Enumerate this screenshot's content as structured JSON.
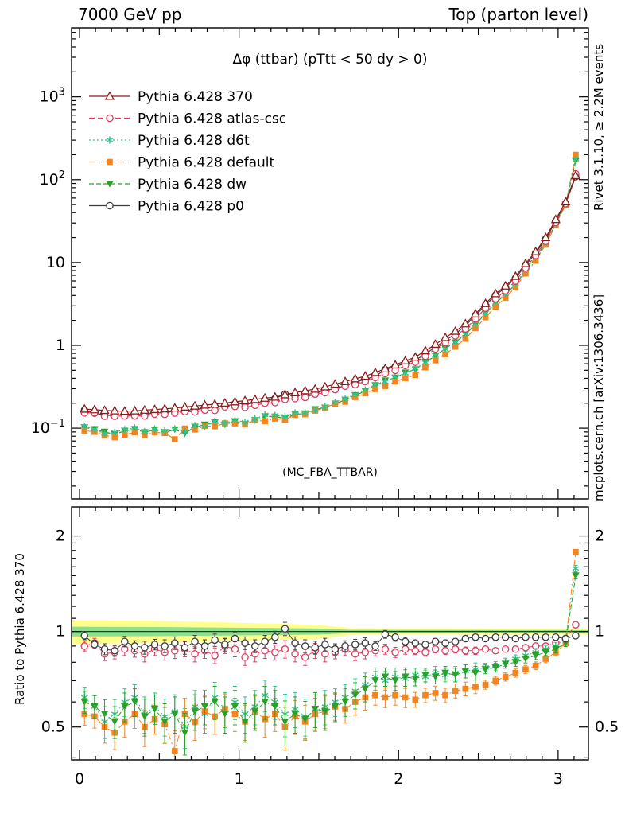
{
  "header": {
    "left": "7000 GeV pp",
    "right": "Top (parton level)"
  },
  "side_notes": {
    "top": "Rivet 3.1.10, ≥ 2.2M events",
    "bottom": "mcplots.cern.ch [arXiv:1306.3436]"
  },
  "watermark": "(MC_FBA_TTBAR)",
  "chart_data": {
    "type": "line",
    "title": "Δφ (ttbar) (pTtt < 50 dy > 0)",
    "xlabel": "",
    "xlim": [
      -0.05,
      3.19
    ],
    "x_label_ticks": [
      0,
      1,
      2,
      3
    ],
    "main_panel": {
      "yscale": "log",
      "ylim": [
        0.014,
        6800
      ],
      "ytick_exponents": [
        -1,
        0,
        1,
        2,
        3
      ]
    },
    "ratio_panel": {
      "yscale": "log",
      "ylim": [
        0.394,
        2.47
      ],
      "yticks": [
        0.5,
        1,
        2
      ],
      "minor_yticks": [
        0.4,
        0.6,
        0.7,
        0.8,
        0.9,
        1.1,
        1.2,
        1.3,
        1.4,
        1.5,
        1.6,
        1.7,
        1.8,
        1.9
      ],
      "ylabel": "Ratio to Pythia 6.428 370"
    },
    "x": [
      0.031,
      0.094,
      0.157,
      0.22,
      0.283,
      0.346,
      0.408,
      0.471,
      0.534,
      0.597,
      0.66,
      0.723,
      0.785,
      0.848,
      0.911,
      0.974,
      1.037,
      1.1,
      1.162,
      1.225,
      1.288,
      1.351,
      1.414,
      1.477,
      1.539,
      1.602,
      1.665,
      1.728,
      1.791,
      1.854,
      1.916,
      1.979,
      2.042,
      2.105,
      2.168,
      2.231,
      2.293,
      2.356,
      2.419,
      2.482,
      2.545,
      2.608,
      2.67,
      2.733,
      2.796,
      2.859,
      2.922,
      2.985,
      3.047,
      3.11
    ],
    "ratio_err": [
      0.04,
      0.04,
      0.05,
      0.05,
      0.05,
      0.05,
      0.06,
      0.05,
      0.06,
      0.06,
      0.06,
      0.06,
      0.06,
      0.06,
      0.06,
      0.06,
      0.06,
      0.06,
      0.06,
      0.06,
      0.07,
      0.06,
      0.06,
      0.06,
      0.06,
      0.05,
      0.05,
      0.05,
      0.05,
      0.04,
      0.04,
      0.04,
      0.04,
      0.03,
      0.03,
      0.03,
      0.03,
      0.03,
      0.03,
      0.03,
      0.02,
      0.02,
      0.02,
      0.02,
      0.02,
      0.02,
      0.02,
      0.02,
      0.02,
      0.03
    ],
    "reference": {
      "key": "370",
      "name": "Pythia 6.428 370",
      "color": "#8b1a1a",
      "marker": "triangle-open",
      "dash": "",
      "values": [
        0.17,
        0.167,
        0.164,
        0.162,
        0.16,
        0.162,
        0.165,
        0.168,
        0.171,
        0.175,
        0.18,
        0.185,
        0.19,
        0.195,
        0.201,
        0.208,
        0.215,
        0.222,
        0.23,
        0.237,
        0.253,
        0.268,
        0.283,
        0.296,
        0.315,
        0.34,
        0.365,
        0.395,
        0.425,
        0.47,
        0.52,
        0.58,
        0.65,
        0.72,
        0.86,
        1.03,
        1.24,
        1.48,
        1.82,
        2.4,
        3.2,
        4.2,
        5.2,
        6.8,
        9.7,
        13.5,
        20.0,
        33.0,
        54.0,
        112
      ]
    },
    "series": [
      {
        "key": "atlas-csc",
        "name": "Pythia 6.428 atlas-csc",
        "color": "#e03a5f",
        "marker": "circle-open",
        "dash": "7,4",
        "err_scale": 0.8,
        "ratio": [
          0.9,
          0.92,
          0.85,
          0.86,
          0.88,
          0.87,
          0.85,
          0.88,
          0.86,
          0.87,
          0.88,
          0.85,
          0.87,
          0.84,
          0.9,
          0.88,
          0.83,
          0.85,
          0.87,
          0.86,
          0.88,
          0.85,
          0.83,
          0.87,
          0.85,
          0.86,
          0.88,
          0.85,
          0.86,
          0.87,
          0.88,
          0.86,
          0.88,
          0.87,
          0.86,
          0.88,
          0.87,
          0.88,
          0.87,
          0.87,
          0.88,
          0.87,
          0.88,
          0.88,
          0.89,
          0.9,
          0.9,
          0.92,
          0.95,
          1.05
        ]
      },
      {
        "key": "d6t",
        "name": "Pythia 6.428 d6t",
        "color": "#33c48d",
        "marker": "asterisk",
        "dash": "2,3",
        "err_scale": 1.2,
        "ratio": [
          0.62,
          0.58,
          0.52,
          0.55,
          0.6,
          0.62,
          0.55,
          0.58,
          0.54,
          0.56,
          0.5,
          0.58,
          0.55,
          0.62,
          0.57,
          0.6,
          0.55,
          0.58,
          0.63,
          0.6,
          0.55,
          0.57,
          0.54,
          0.56,
          0.58,
          0.6,
          0.62,
          0.65,
          0.68,
          0.72,
          0.7,
          0.72,
          0.71,
          0.73,
          0.72,
          0.74,
          0.73,
          0.74,
          0.75,
          0.76,
          0.77,
          0.78,
          0.8,
          0.82,
          0.84,
          0.86,
          0.88,
          0.9,
          0.95,
          1.58
        ]
      },
      {
        "key": "default",
        "name": "Pythia 6.428 default",
        "color": "#f28522",
        "marker": "square",
        "dash": "8,4,2,4",
        "err_scale": 1.1,
        "ratio": [
          0.55,
          0.54,
          0.5,
          0.48,
          0.52,
          0.55,
          0.5,
          0.53,
          0.51,
          0.42,
          0.55,
          0.52,
          0.56,
          0.54,
          0.57,
          0.55,
          0.52,
          0.56,
          0.53,
          0.55,
          0.5,
          0.54,
          0.52,
          0.55,
          0.56,
          0.58,
          0.57,
          0.6,
          0.62,
          0.63,
          0.62,
          0.63,
          0.62,
          0.61,
          0.63,
          0.64,
          0.63,
          0.65,
          0.66,
          0.67,
          0.68,
          0.7,
          0.72,
          0.74,
          0.76,
          0.78,
          0.82,
          0.86,
          0.92,
          1.78
        ]
      },
      {
        "key": "dw",
        "name": "Pythia 6.428 dw",
        "color": "#2aa02a",
        "marker": "triangle-down",
        "dash": "6,3",
        "err_scale": 1.2,
        "ratio": [
          0.6,
          0.58,
          0.55,
          0.52,
          0.58,
          0.6,
          0.54,
          0.57,
          0.52,
          0.55,
          0.48,
          0.56,
          0.58,
          0.6,
          0.55,
          0.58,
          0.52,
          0.56,
          0.6,
          0.58,
          0.52,
          0.55,
          0.53,
          0.57,
          0.56,
          0.58,
          0.6,
          0.63,
          0.66,
          0.7,
          0.72,
          0.7,
          0.72,
          0.71,
          0.73,
          0.72,
          0.74,
          0.73,
          0.75,
          0.74,
          0.76,
          0.77,
          0.79,
          0.8,
          0.82,
          0.84,
          0.86,
          0.88,
          0.92,
          1.5
        ]
      },
      {
        "key": "p0",
        "name": "Pythia 6.428 p0",
        "color": "#3d3d3d",
        "marker": "circle-open",
        "dash": "",
        "err_scale": 0.7,
        "ratio": [
          0.97,
          0.91,
          0.88,
          0.87,
          0.93,
          0.9,
          0.89,
          0.91,
          0.9,
          0.92,
          0.89,
          0.93,
          0.9,
          0.94,
          0.91,
          0.95,
          0.92,
          0.9,
          0.93,
          0.96,
          1.02,
          0.92,
          0.9,
          0.89,
          0.91,
          0.88,
          0.9,
          0.91,
          0.92,
          0.9,
          0.98,
          0.96,
          0.93,
          0.92,
          0.91,
          0.93,
          0.92,
          0.93,
          0.95,
          0.96,
          0.95,
          0.96,
          0.96,
          0.95,
          0.96,
          0.96,
          0.96,
          0.96,
          0.95,
          0.97
        ]
      }
    ],
    "band": {
      "x": [
        -0.05,
        0.5,
        1.0,
        1.5,
        1.7,
        3.19
      ],
      "yellow_halfwidth": [
        0.085,
        0.08,
        0.065,
        0.05,
        0.025,
        0.02
      ],
      "green_halfwidth": [
        0.035,
        0.033,
        0.028,
        0.022,
        0.012,
        0.01
      ],
      "yellow_color": "#ffff8c",
      "green_color": "#8fdf8f",
      "center_line_color": "#333333"
    },
    "colors": {
      "frame": "#000000",
      "watermark": "#b3b3b3",
      "side_note": "#878787"
    }
  }
}
